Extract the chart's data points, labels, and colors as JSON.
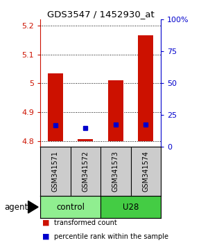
{
  "title": "GDS3547 / 1452930_at",
  "samples": [
    "GSM341571",
    "GSM341572",
    "GSM341573",
    "GSM341574"
  ],
  "red_values": [
    5.035,
    4.808,
    5.01,
    5.165
  ],
  "blue_values": [
    4.855,
    4.845,
    4.858,
    4.858
  ],
  "red_base": 4.8,
  "ylim_left": [
    4.78,
    5.22
  ],
  "ylim_right": [
    0,
    100
  ],
  "left_ticks": [
    4.8,
    4.9,
    5.0,
    5.1,
    5.2
  ],
  "right_ticks": [
    0,
    25,
    50,
    75,
    100
  ],
  "left_tick_labels": [
    "4.8",
    "4.9",
    "5",
    "5.1",
    "5.2"
  ],
  "right_tick_labels": [
    "0",
    "25",
    "50",
    "75",
    "100%"
  ],
  "bar_width": 0.5,
  "red_color": "#CC1100",
  "blue_color": "#0000CC",
  "legend_red": "transformed count",
  "legend_blue": "percentile rank within the sample",
  "agent_label": "agent",
  "control_color": "#90EE90",
  "u28_color": "#44CC44",
  "sample_bg": "#CCCCCC"
}
